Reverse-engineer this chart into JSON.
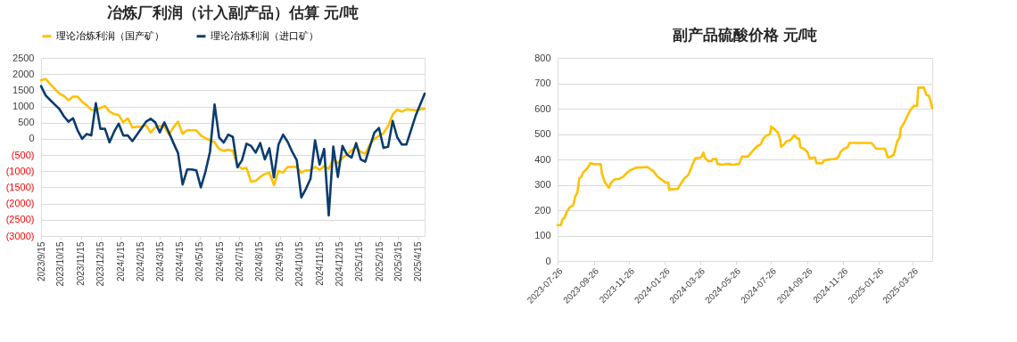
{
  "chart_data": [
    {
      "type": "line",
      "title": "冶炼厂利润（计入副产品）估算 元/吨",
      "legend": "top",
      "grid": "y",
      "x": [
        "2023-09-15",
        "2023-09-22",
        "2023-09-29",
        "2023-10-06",
        "2023-10-13",
        "2023-10-20",
        "2023-10-27",
        "2023-11-03",
        "2023-11-10",
        "2023-11-17",
        "2023-11-24",
        "2023-12-01",
        "2023-12-08",
        "2023-12-15",
        "2023-12-22",
        "2023-12-29",
        "2024-01-05",
        "2024-01-12",
        "2024-01-19",
        "2024-01-26",
        "2024-02-02",
        "2024-02-09",
        "2024-02-16",
        "2024-02-23",
        "2024-03-01",
        "2024-03-08",
        "2024-03-15",
        "2024-03-22",
        "2024-03-29",
        "2024-04-05",
        "2024-04-12",
        "2024-04-19",
        "2024-04-26",
        "2024-05-03",
        "2024-05-10",
        "2024-05-17",
        "2024-05-24",
        "2024-05-31",
        "2024-06-07",
        "2024-06-14",
        "2024-06-21",
        "2024-06-28",
        "2024-07-05",
        "2024-07-12",
        "2024-07-19",
        "2024-07-26",
        "2024-08-02",
        "2024-08-09",
        "2024-08-16",
        "2024-08-23",
        "2024-08-30",
        "2024-09-06",
        "2024-09-13",
        "2024-09-20",
        "2024-09-27",
        "2024-10-04",
        "2024-10-11",
        "2024-10-18",
        "2024-10-25",
        "2024-11-01",
        "2024-11-08",
        "2024-11-15",
        "2024-11-22",
        "2024-11-29",
        "2024-12-06",
        "2024-12-13",
        "2024-12-20",
        "2024-12-27",
        "2025-01-03",
        "2025-01-10",
        "2025-01-17",
        "2025-01-24",
        "2025-01-31",
        "2025-02-07",
        "2025-02-14",
        "2025-02-21",
        "2025-02-28",
        "2025-03-07",
        "2025-03-14",
        "2025-03-21",
        "2025-03-28",
        "2025-04-04",
        "2025-04-11",
        "2025-04-18",
        "2025-04-25"
      ],
      "xlim": [
        "2023-09-15",
        "2025-04-25"
      ],
      "xticks": [
        {
          "value": "2023-09-15",
          "label": "2023/9/15"
        },
        {
          "value": "2023-10-15",
          "label": "2023/10/15"
        },
        {
          "value": "2023-11-15",
          "label": "2023/11/15"
        },
        {
          "value": "2023-12-15",
          "label": "2023/12/15"
        },
        {
          "value": "2024-01-15",
          "label": "2024/1/15"
        },
        {
          "value": "2024-02-15",
          "label": "2024/2/15"
        },
        {
          "value": "2024-03-15",
          "label": "2024/3/15"
        },
        {
          "value": "2024-04-15",
          "label": "2024/4/15"
        },
        {
          "value": "2024-05-15",
          "label": "2024/5/15"
        },
        {
          "value": "2024-06-15",
          "label": "2024/6/15"
        },
        {
          "value": "2024-07-15",
          "label": "2024/7/15"
        },
        {
          "value": "2024-08-15",
          "label": "2024/8/15"
        },
        {
          "value": "2024-09-15",
          "label": "2024/9/15"
        },
        {
          "value": "2024-10-15",
          "label": "2024/10/15"
        },
        {
          "value": "2024-11-15",
          "label": "2024/11/15"
        },
        {
          "value": "2024-12-15",
          "label": "2024/12/15"
        },
        {
          "value": "2025-01-15",
          "label": "2025/1/15"
        },
        {
          "value": "2025-02-15",
          "label": "2025/2/15"
        },
        {
          "value": "2025-03-15",
          "label": "2025/3/15"
        },
        {
          "value": "2025-04-15",
          "label": "2025/4/15"
        }
      ],
      "ylim": [
        -3000,
        2500
      ],
      "yticks": [
        {
          "value": -3000,
          "label": "(3000)"
        },
        {
          "value": -2500,
          "label": "(2500)"
        },
        {
          "value": -2000,
          "label": "(2000)"
        },
        {
          "value": -1500,
          "label": "(1500)"
        },
        {
          "value": -1000,
          "label": "(1000)"
        },
        {
          "value": -500,
          "label": "(500)"
        },
        0,
        500,
        1000,
        1500,
        2000,
        2500
      ],
      "series": [
        {
          "name": "理论冶炼利润（国产矿）",
          "color": "#ffc000",
          "values": [
            1810,
            1850,
            1695,
            1545,
            1395,
            1325,
            1190,
            1305,
            1305,
            1145,
            1040,
            900,
            900,
            950,
            1015,
            840,
            765,
            735,
            510,
            635,
            355,
            370,
            380,
            425,
            195,
            355,
            395,
            395,
            130,
            355,
            530,
            160,
            265,
            265,
            265,
            105,
            20,
            -45,
            -105,
            -310,
            -370,
            -335,
            -370,
            -820,
            -925,
            -900,
            -1325,
            -1295,
            -1175,
            -1085,
            -1040,
            -1430,
            -990,
            -1040,
            -865,
            -865,
            -865,
            -1040,
            -970,
            -970,
            -865,
            -955,
            -840,
            -925,
            -620,
            -750,
            -590,
            -485,
            -355,
            -245,
            -400,
            -460,
            -175,
            0,
            90,
            175,
            395,
            750,
            900,
            840,
            910,
            900,
            880,
            910,
            925
          ]
        },
        {
          "name": "理论冶炼利润（进口矿）",
          "color": "#0b3c6e",
          "values": [
            1630,
            1340,
            1200,
            1060,
            925,
            700,
            530,
            635,
            265,
            0,
            150,
            105,
            1100,
            310,
            310,
            -105,
            220,
            470,
            105,
            105,
            -70,
            130,
            325,
            530,
            620,
            510,
            200,
            510,
            195,
            -130,
            -440,
            -1410,
            -945,
            -945,
            -970,
            -1500,
            -1015,
            -400,
            1060,
            45,
            -115,
            130,
            60,
            -880,
            -660,
            -150,
            -220,
            -425,
            -130,
            -635,
            -290,
            -1190,
            -175,
            130,
            -90,
            -400,
            -660,
            -1810,
            -1545,
            -1235,
            -45,
            -795,
            -310,
            -2365,
            -240,
            -1175,
            -220,
            -485,
            -575,
            -130,
            -635,
            -705,
            -245,
            195,
            335,
            -280,
            -245,
            555,
            45,
            -175,
            -175,
            265,
            705,
            1050,
            1395
          ]
        }
      ]
    },
    {
      "type": "line",
      "title": "副产品硫酸价格 元/吨",
      "grid": "y",
      "x": [
        "2023-07-26",
        "2023-08-01",
        "2023-08-03",
        "2023-08-07",
        "2023-08-11",
        "2023-08-16",
        "2023-08-22",
        "2023-08-25",
        "2023-08-29",
        "2023-09-01",
        "2023-09-05",
        "2023-09-08",
        "2023-09-14",
        "2023-09-18",
        "2023-09-20",
        "2023-09-26",
        "2023-10-08",
        "2023-10-10",
        "2023-10-15",
        "2023-10-22",
        "2023-10-26",
        "2023-11-01",
        "2023-11-09",
        "2023-11-15",
        "2023-11-23",
        "2023-11-29",
        "2023-12-07",
        "2023-12-27",
        "2024-01-06",
        "2024-01-13",
        "2024-01-26",
        "2024-02-01",
        "2024-02-02",
        "2024-02-17",
        "2024-02-22",
        "2024-02-29",
        "2024-03-06",
        "2024-03-13",
        "2024-03-18",
        "2024-03-28",
        "2024-04-01",
        "2024-04-03",
        "2024-04-09",
        "2024-04-15",
        "2024-04-17",
        "2024-04-23",
        "2024-04-25",
        "2024-05-05",
        "2024-05-09",
        "2024-05-15",
        "2024-05-21",
        "2024-06-01",
        "2024-06-06",
        "2024-06-16",
        "2024-06-24",
        "2024-07-01",
        "2024-07-08",
        "2024-07-12",
        "2024-07-18",
        "2024-07-24",
        "2024-07-26",
        "2024-07-30",
        "2024-08-07",
        "2024-08-10",
        "2024-08-12",
        "2024-08-17",
        "2024-08-21",
        "2024-08-28",
        "2024-09-04",
        "2024-09-09",
        "2024-09-12",
        "2024-09-14",
        "2024-09-20",
        "2024-09-26",
        "2024-09-30",
        "2024-10-09",
        "2024-10-12",
        "2024-10-22",
        "2024-10-24",
        "2024-11-03",
        "2024-11-11",
        "2024-11-18",
        "2024-11-22",
        "2024-11-28",
        "2024-12-04",
        "2024-12-07",
        "2025-01-14",
        "2025-01-22",
        "2025-02-06",
        "2025-02-11",
        "2025-02-16",
        "2025-02-21",
        "2025-02-27",
        "2025-03-03",
        "2025-03-05",
        "2025-03-11",
        "2025-03-15",
        "2025-03-22",
        "2025-03-28",
        "2025-04-02",
        "2025-04-04",
        "2025-04-14",
        "2025-04-18",
        "2025-04-22",
        "2025-04-24",
        "2025-04-28"
      ],
      "xlim": [
        "2023-07-26",
        "2025-04-28"
      ],
      "xticks": [
        "2023-07-26",
        "2023-09-26",
        "2023-11-26",
        "2024-01-26",
        "2024-03-26",
        "2024-05-26",
        "2024-07-26",
        "2024-09-26",
        "2024-11-26",
        "2025-01-26",
        "2025-03-26"
      ],
      "ylim": [
        0,
        800
      ],
      "yticks": [
        0,
        100,
        200,
        300,
        400,
        500,
        600,
        700,
        800
      ],
      "series": [
        {
          "color": "#ffc000",
          "values": [
            141,
            141,
            163,
            170,
            195,
            212,
            220,
            253,
            270,
            324,
            333,
            350,
            362,
            377,
            385,
            382,
            381,
            344,
            310,
            289,
            310,
            321,
            324,
            331,
            350,
            359,
            367,
            370,
            354,
            333,
            310,
            308,
            281,
            284,
            304,
            327,
            339,
            379,
            404,
            408,
            427,
            408,
            393,
            393,
            402,
            402,
            382,
            379,
            382,
            382,
            379,
            382,
            411,
            411,
            433,
            450,
            459,
            480,
            494,
            499,
            530,
            522,
            505,
            482,
            450,
            459,
            471,
            476,
            496,
            482,
            482,
            448,
            442,
            430,
            404,
            408,
            385,
            385,
            396,
            400,
            402,
            408,
            430,
            442,
            448,
            465,
            465,
            442,
            442,
            408,
            411,
            419,
            471,
            485,
            522,
            545,
            565,
            597,
            611,
            611,
            683,
            683,
            654,
            652,
            637,
            603
          ]
        }
      ]
    }
  ]
}
